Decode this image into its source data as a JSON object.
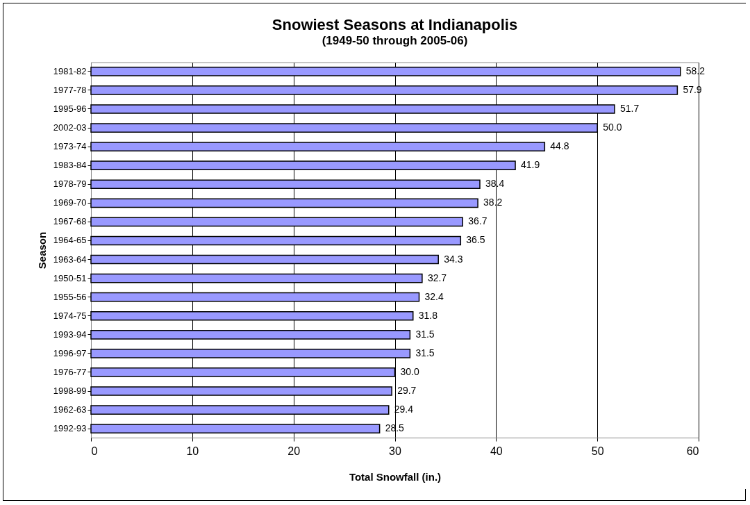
{
  "chart_data": {
    "type": "bar",
    "orientation": "horizontal",
    "title": "Snowiest Seasons at Indianapolis",
    "subtitle": "(1949-50 through 2005-06)",
    "xlabel": "Total Snowfall (in.)",
    "ylabel": "Season",
    "categories": [
      "1981-82",
      "1977-78",
      "1995-96",
      "2002-03",
      "1973-74",
      "1983-84",
      "1978-79",
      "1969-70",
      "1967-68",
      "1964-65",
      "1963-64",
      "1950-51",
      "1955-56",
      "1974-75",
      "1993-94",
      "1996-97",
      "1976-77",
      "1998-99",
      "1962-63",
      "1992-93"
    ],
    "values": [
      58.2,
      57.9,
      51.7,
      50.0,
      44.8,
      41.9,
      38.4,
      38.2,
      36.7,
      36.5,
      34.3,
      32.7,
      32.4,
      31.8,
      31.5,
      31.5,
      30.0,
      29.7,
      29.4,
      28.5
    ],
    "value_labels": [
      "58.2",
      "57.9",
      "51.7",
      "50.0",
      "44.8",
      "41.9",
      "38.4",
      "38.2",
      "36.7",
      "36.5",
      "34.3",
      "32.7",
      "32.4",
      "31.8",
      "31.5",
      "31.5",
      "30.0",
      "29.7",
      "29.4",
      "28.5"
    ],
    "color": "#9999ff",
    "xlim": [
      0,
      60
    ],
    "xticks": [
      0,
      10,
      20,
      30,
      40,
      50,
      60
    ],
    "grid": "x"
  }
}
